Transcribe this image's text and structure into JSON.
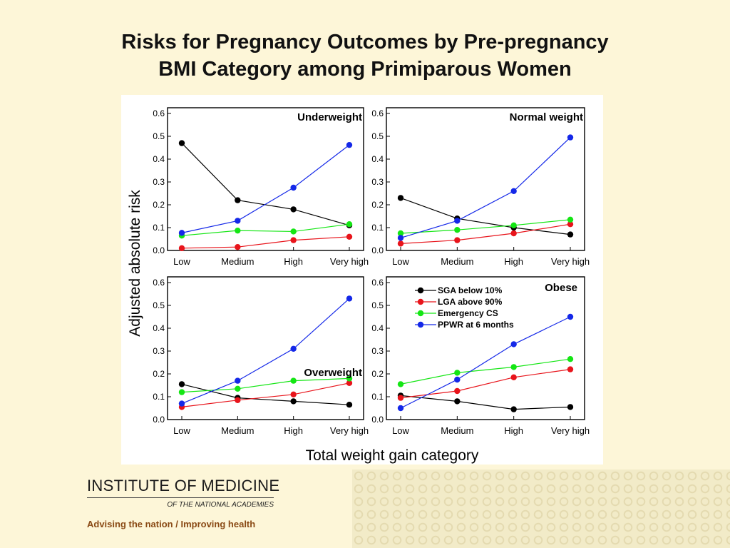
{
  "slide": {
    "title_line1": "Risks for Pregnancy Outcomes by Pre-pregnancy",
    "title_line2": "BMI Category among Primiparous Women"
  },
  "footer": {
    "brand_name": "INSTITUTE OF MEDICINE",
    "brand_sub": "OF THE NATIONAL ACADEMIES",
    "tagline_left": "Advising the nation",
    "tagline_sep": " / ",
    "tagline_right": "Improving health"
  },
  "colors": {
    "sga": "#000000",
    "lga": "#e8141b",
    "cs": "#14e614",
    "ppwr": "#1428e8",
    "tagline": "#8a4a15",
    "background": "#fdf6d8"
  },
  "chart_data": {
    "type": "line",
    "ylabel": "Adjusted absolute risk",
    "xlabel": "Total weight gain category",
    "ylim": [
      0.0,
      0.6
    ],
    "yticks": [
      "0.0",
      "0.1",
      "0.2",
      "0.3",
      "0.4",
      "0.5",
      "0.6"
    ],
    "categories": [
      "Low",
      "Medium",
      "High",
      "Very high"
    ],
    "legend": {
      "placement": "top-right panel, upper-left",
      "entries": [
        "SGA below 10%",
        "LGA above 90%",
        "Emergency CS",
        "PPWR at 6 months"
      ]
    },
    "panels": [
      {
        "title": "Underweight",
        "series": [
          {
            "name": "SGA below 10%",
            "values": [
              0.47,
              0.22,
              0.18,
              0.11
            ]
          },
          {
            "name": "LGA above 90%",
            "values": [
              0.01,
              0.015,
              0.045,
              0.06
            ]
          },
          {
            "name": "Emergency CS",
            "values": [
              0.065,
              0.087,
              0.083,
              0.115
            ]
          },
          {
            "name": "PPWR at 6 months",
            "values": [
              0.077,
              0.13,
              0.275,
              0.462
            ]
          }
        ]
      },
      {
        "title": "Normal weight",
        "series": [
          {
            "name": "SGA below 10%",
            "values": [
              0.23,
              0.14,
              0.1,
              0.07
            ]
          },
          {
            "name": "LGA above 90%",
            "values": [
              0.03,
              0.045,
              0.075,
              0.115
            ]
          },
          {
            "name": "Emergency CS",
            "values": [
              0.075,
              0.09,
              0.11,
              0.135
            ]
          },
          {
            "name": "PPWR at 6 months",
            "values": [
              0.055,
              0.13,
              0.26,
              0.495
            ]
          }
        ]
      },
      {
        "title": "Overweight",
        "series": [
          {
            "name": "SGA below 10%",
            "values": [
              0.155,
              0.095,
              0.08,
              0.065
            ]
          },
          {
            "name": "LGA above 90%",
            "values": [
              0.055,
              0.085,
              0.11,
              0.16
            ]
          },
          {
            "name": "Emergency CS",
            "values": [
              0.12,
              0.135,
              0.17,
              0.18
            ]
          },
          {
            "name": "PPWR at 6 months",
            "values": [
              0.07,
              0.17,
              0.31,
              0.53
            ]
          }
        ]
      },
      {
        "title": "Obese",
        "series": [
          {
            "name": "SGA below 10%",
            "values": [
              0.105,
              0.08,
              0.045,
              0.055
            ]
          },
          {
            "name": "LGA above 90%",
            "values": [
              0.095,
              0.125,
              0.185,
              0.22
            ]
          },
          {
            "name": "Emergency CS",
            "values": [
              0.155,
              0.205,
              0.23,
              0.265
            ]
          },
          {
            "name": "PPWR at 6 months",
            "values": [
              0.05,
              0.175,
              0.33,
              0.45
            ]
          }
        ]
      }
    ]
  }
}
